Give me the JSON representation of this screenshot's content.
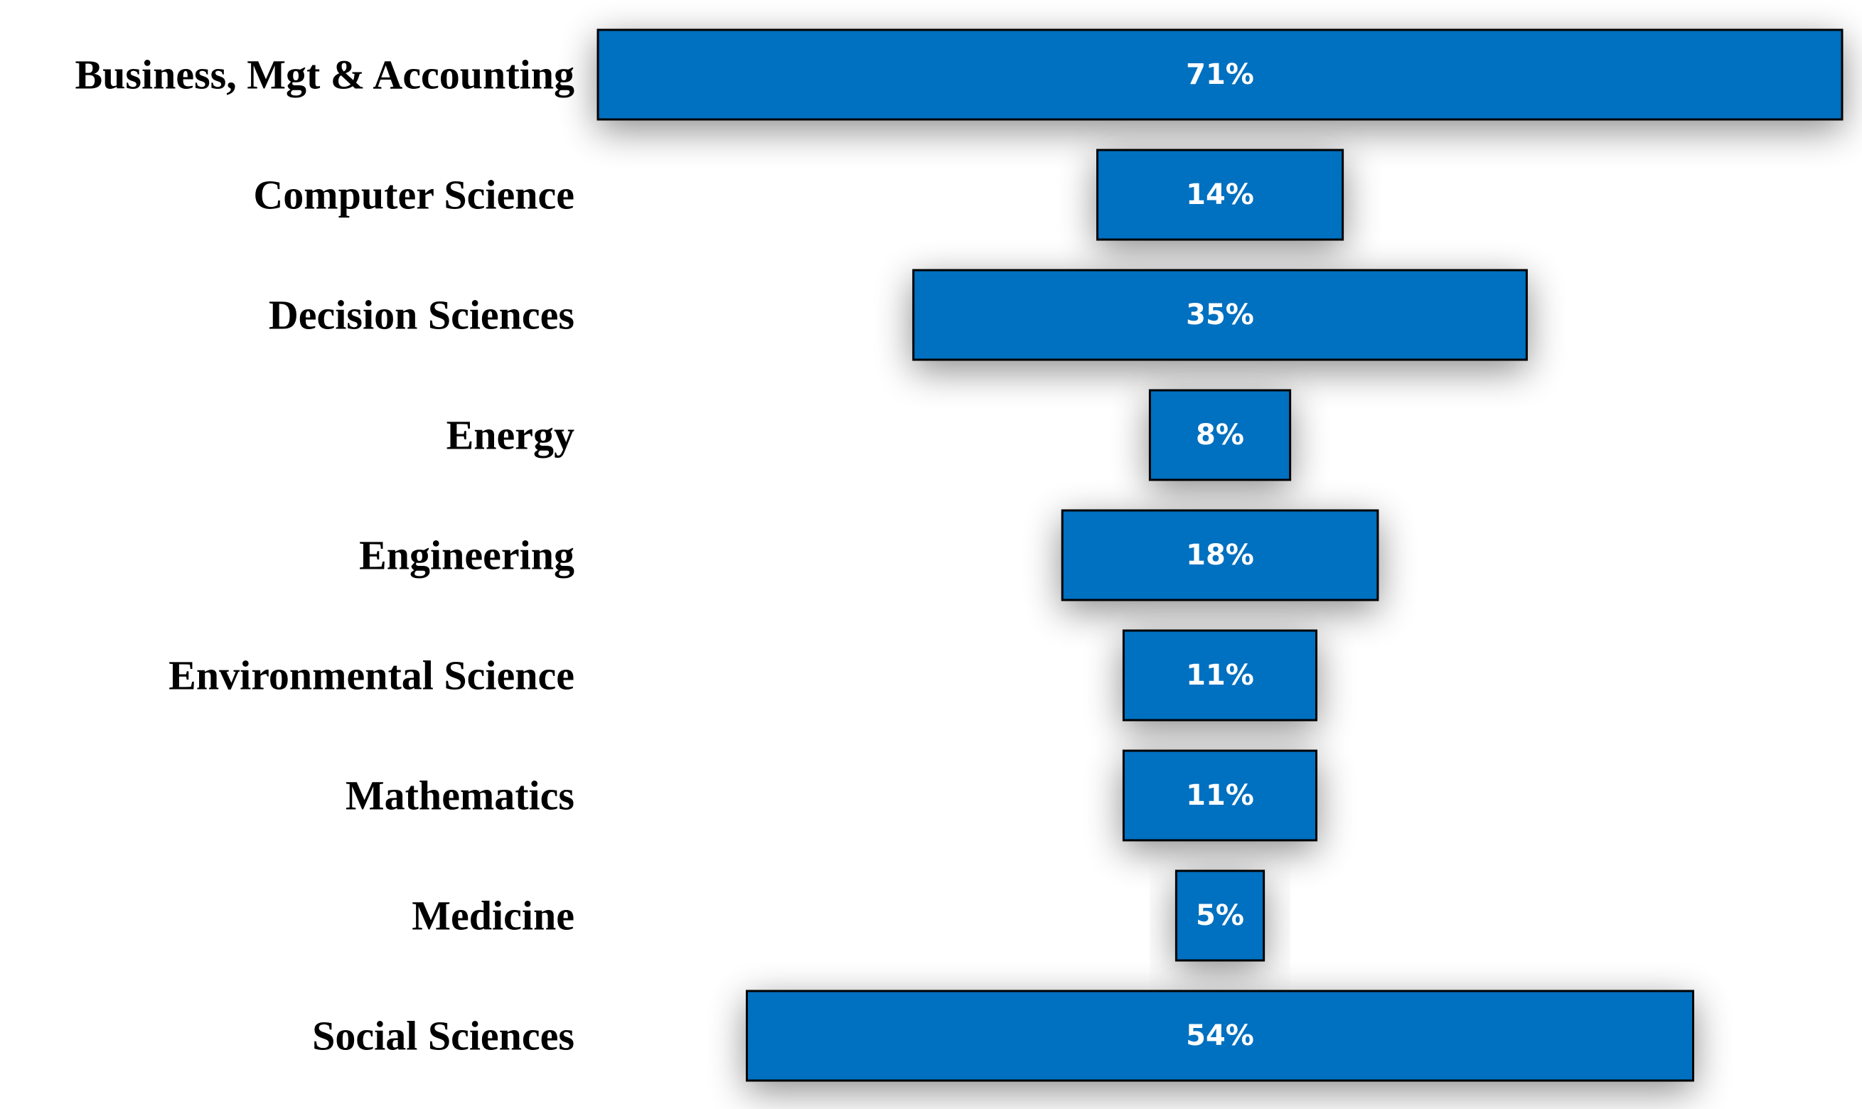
{
  "chart_data": {
    "type": "bar",
    "orientation": "horizontal-funnel",
    "title": "",
    "xlabel": "",
    "ylabel": "",
    "categories": [
      "Business, Mgt & Accounting",
      "Computer Science",
      "Decision Sciences",
      "Energy",
      "Engineering",
      "Environmental Science",
      "Mathematics",
      "Medicine",
      "Social Sciences"
    ],
    "values": [
      71,
      14,
      35,
      8,
      18,
      11,
      11,
      5,
      54
    ],
    "value_labels": [
      "71%",
      "14%",
      "35%",
      "8%",
      "18%",
      "11%",
      "11%",
      "5%",
      "54%"
    ],
    "unit": "%",
    "xlim": [
      0,
      71
    ],
    "grid": false,
    "legend": "none",
    "colors": {
      "bar_fill": "#0070C0",
      "bar_stroke": "#000000",
      "value_text": "#ffffff",
      "category_text": "#000000"
    }
  }
}
